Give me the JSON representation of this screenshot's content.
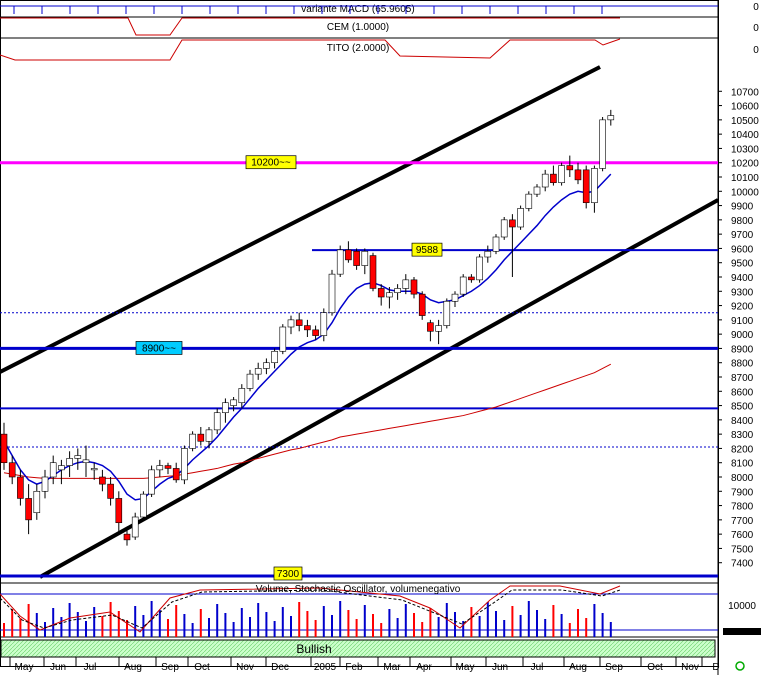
{
  "indicators": {
    "macd_label": "variante MACD (65.9605)",
    "cem_label": "CEM (1.0000)",
    "tito_label": "TITO (2.0000)",
    "macd_value": "0",
    "cem_value": "0",
    "tito_value": "0"
  },
  "levels": {
    "upper_label": "10200~~",
    "mid_label": "9588",
    "lower_label": "8900~~",
    "bottom_label": "7300"
  },
  "volume_pane": {
    "title": "Volume, Stochastic Oscillator, volumenegativo",
    "axis_value": "10000"
  },
  "status": {
    "signal": "Bullish"
  },
  "colors": {
    "up": "#ffffff",
    "down": "#ff0000",
    "ma_short": "#0000cc",
    "ma_long": "#cc0000",
    "level_blue": "#0000cc",
    "level_magenta": "#ff00ff",
    "channel": "#000000",
    "label_yellow": "#ffff00",
    "label_cyan": "#00ccff"
  },
  "chart_data": {
    "type": "candlestick",
    "title": "",
    "ylim": [
      7300,
      10800
    ],
    "y_ticks": [
      7400,
      7500,
      7600,
      7700,
      7800,
      7900,
      8000,
      8100,
      8200,
      8300,
      8400,
      8500,
      8600,
      8700,
      8800,
      8900,
      9000,
      9100,
      9200,
      9300,
      9400,
      9500,
      9600,
      9700,
      9800,
      9900,
      10000,
      10100,
      10200,
      10300,
      10400,
      10500,
      10600,
      10700
    ],
    "x_labels": [
      "May",
      "Jun",
      "Jul",
      "Aug",
      "Sep",
      "Oct",
      "Nov",
      "Dec",
      "2005",
      "Feb",
      "Mar",
      "Apr",
      "May",
      "Jun",
      "Jul",
      "Aug",
      "Sep",
      "Oct",
      "Nov",
      "D"
    ],
    "horizontal_levels": [
      10200,
      9588,
      8900,
      8480
    ],
    "dotted_levels": [
      9150,
      8210
    ],
    "candles": [
      {
        "o": 8300,
        "h": 8380,
        "l": 8050,
        "c": 8100
      },
      {
        "o": 8100,
        "h": 8150,
        "l": 7950,
        "c": 8000
      },
      {
        "o": 8000,
        "h": 8050,
        "l": 7800,
        "c": 7850
      },
      {
        "o": 7850,
        "h": 7950,
        "l": 7600,
        "c": 7700
      },
      {
        "o": 7750,
        "h": 7950,
        "l": 7700,
        "c": 7900
      },
      {
        "o": 7900,
        "h": 8050,
        "l": 7850,
        "c": 8000
      },
      {
        "o": 8000,
        "h": 8150,
        "l": 7950,
        "c": 8100
      },
      {
        "o": 8050,
        "h": 8120,
        "l": 7950,
        "c": 8080
      },
      {
        "o": 8080,
        "h": 8180,
        "l": 8000,
        "c": 8130
      },
      {
        "o": 8130,
        "h": 8200,
        "l": 8050,
        "c": 8150
      },
      {
        "o": 8100,
        "h": 8220,
        "l": 8000,
        "c": 8120
      },
      {
        "o": 8050,
        "h": 8100,
        "l": 7980,
        "c": 8060
      },
      {
        "o": 8000,
        "h": 8050,
        "l": 7900,
        "c": 7950
      },
      {
        "o": 7950,
        "h": 8000,
        "l": 7800,
        "c": 7850
      },
      {
        "o": 7850,
        "h": 7900,
        "l": 7600,
        "c": 7680
      },
      {
        "o": 7600,
        "h": 7650,
        "l": 7520,
        "c": 7560
      },
      {
        "o": 7580,
        "h": 7750,
        "l": 7560,
        "c": 7720
      },
      {
        "o": 7720,
        "h": 7900,
        "l": 7700,
        "c": 7880
      },
      {
        "o": 7880,
        "h": 8080,
        "l": 7860,
        "c": 8050
      },
      {
        "o": 8050,
        "h": 8120,
        "l": 8000,
        "c": 8080
      },
      {
        "o": 8080,
        "h": 8100,
        "l": 8020,
        "c": 8060
      },
      {
        "o": 8060,
        "h": 8100,
        "l": 7960,
        "c": 7980
      },
      {
        "o": 7980,
        "h": 8220,
        "l": 7950,
        "c": 8200
      },
      {
        "o": 8200,
        "h": 8320,
        "l": 8180,
        "c": 8300
      },
      {
        "o": 8300,
        "h": 8350,
        "l": 8220,
        "c": 8250
      },
      {
        "o": 8250,
        "h": 8350,
        "l": 8200,
        "c": 8330
      },
      {
        "o": 8330,
        "h": 8480,
        "l": 8300,
        "c": 8450
      },
      {
        "o": 8450,
        "h": 8550,
        "l": 8380,
        "c": 8520
      },
      {
        "o": 8500,
        "h": 8560,
        "l": 8460,
        "c": 8540
      },
      {
        "o": 8520,
        "h": 8650,
        "l": 8480,
        "c": 8620
      },
      {
        "o": 8620,
        "h": 8750,
        "l": 8600,
        "c": 8720
      },
      {
        "o": 8720,
        "h": 8800,
        "l": 8680,
        "c": 8760
      },
      {
        "o": 8760,
        "h": 8830,
        "l": 8720,
        "c": 8800
      },
      {
        "o": 8800,
        "h": 8900,
        "l": 8760,
        "c": 8880
      },
      {
        "o": 8880,
        "h": 9070,
        "l": 8860,
        "c": 9050
      },
      {
        "o": 9050,
        "h": 9130,
        "l": 9000,
        "c": 9100
      },
      {
        "o": 9100,
        "h": 9150,
        "l": 9020,
        "c": 9060
      },
      {
        "o": 9060,
        "h": 9100,
        "l": 8980,
        "c": 9030
      },
      {
        "o": 9030,
        "h": 9060,
        "l": 8960,
        "c": 8990
      },
      {
        "o": 8990,
        "h": 9180,
        "l": 8950,
        "c": 9150
      },
      {
        "o": 9150,
        "h": 9450,
        "l": 9130,
        "c": 9420
      },
      {
        "o": 9420,
        "h": 9620,
        "l": 9400,
        "c": 9590
      },
      {
        "o": 9590,
        "h": 9650,
        "l": 9500,
        "c": 9520
      },
      {
        "o": 9580,
        "h": 9600,
        "l": 9450,
        "c": 9480
      },
      {
        "o": 9480,
        "h": 9600,
        "l": 9420,
        "c": 9580
      },
      {
        "o": 9550,
        "h": 9570,
        "l": 9300,
        "c": 9320
      },
      {
        "o": 9320,
        "h": 9350,
        "l": 9200,
        "c": 9260
      },
      {
        "o": 9260,
        "h": 9330,
        "l": 9180,
        "c": 9290
      },
      {
        "o": 9290,
        "h": 9350,
        "l": 9240,
        "c": 9320
      },
      {
        "o": 9320,
        "h": 9420,
        "l": 9280,
        "c": 9380
      },
      {
        "o": 9380,
        "h": 9400,
        "l": 9250,
        "c": 9280
      },
      {
        "o": 9280,
        "h": 9300,
        "l": 9100,
        "c": 9130
      },
      {
        "o": 9080,
        "h": 9100,
        "l": 8950,
        "c": 9020
      },
      {
        "o": 9020,
        "h": 9100,
        "l": 8930,
        "c": 9060
      },
      {
        "o": 9060,
        "h": 9250,
        "l": 9040,
        "c": 9230
      },
      {
        "o": 9230,
        "h": 9300,
        "l": 9190,
        "c": 9280
      },
      {
        "o": 9280,
        "h": 9420,
        "l": 9260,
        "c": 9400
      },
      {
        "o": 9400,
        "h": 9420,
        "l": 9360,
        "c": 9380
      },
      {
        "o": 9380,
        "h": 9560,
        "l": 9360,
        "c": 9540
      },
      {
        "o": 9540,
        "h": 9620,
        "l": 9500,
        "c": 9580
      },
      {
        "o": 9580,
        "h": 9700,
        "l": 9560,
        "c": 9680
      },
      {
        "o": 9680,
        "h": 9820,
        "l": 9660,
        "c": 9800
      },
      {
        "o": 9800,
        "h": 9840,
        "l": 9400,
        "c": 9750
      },
      {
        "o": 9750,
        "h": 9900,
        "l": 9730,
        "c": 9880
      },
      {
        "o": 9880,
        "h": 10000,
        "l": 9860,
        "c": 9980
      },
      {
        "o": 9980,
        "h": 10050,
        "l": 9960,
        "c": 10030
      },
      {
        "o": 10030,
        "h": 10150,
        "l": 10000,
        "c": 10120
      },
      {
        "o": 10120,
        "h": 10180,
        "l": 10040,
        "c": 10060
      },
      {
        "o": 10060,
        "h": 10200,
        "l": 10040,
        "c": 10180
      },
      {
        "o": 10180,
        "h": 10250,
        "l": 10100,
        "c": 10150
      },
      {
        "o": 10150,
        "h": 10200,
        "l": 10050,
        "c": 10080
      },
      {
        "o": 10150,
        "h": 10180,
        "l": 9880,
        "c": 9920
      },
      {
        "o": 9920,
        "h": 10180,
        "l": 9850,
        "c": 10160
      },
      {
        "o": 10160,
        "h": 10520,
        "l": 10140,
        "c": 10500
      },
      {
        "o": 10500,
        "h": 10570,
        "l": 10460,
        "c": 10530
      }
    ],
    "ma_short": [
      8250,
      8150,
      8050,
      7980,
      7950,
      7970,
      8010,
      8050,
      8080,
      8100,
      8110,
      8100,
      8080,
      8040,
      7970,
      7880,
      7840,
      7850,
      7900,
      7950,
      7990,
      8010,
      8060,
      8120,
      8170,
      8220,
      8280,
      8350,
      8420,
      8480,
      8550,
      8620,
      8680,
      8740,
      8800,
      8860,
      8910,
      8940,
      8960,
      9000,
      9080,
      9180,
      9260,
      9320,
      9350,
      9360,
      9340,
      9310,
      9300,
      9300,
      9300,
      9280,
      9240,
      9220,
      9230,
      9240,
      9270,
      9300,
      9340,
      9390,
      9450,
      9520,
      9580,
      9640,
      9700,
      9760,
      9830,
      9890,
      9940,
      9980,
      10000,
      9990,
      10000,
      10060,
      10120
    ],
    "ma_long": [
      8030,
      8020,
      8010,
      8000,
      7995,
      7990,
      7990,
      7990,
      7990,
      7990,
      7990,
      7990,
      7990,
      7990,
      7990,
      7990,
      7990,
      7990,
      7995,
      8000,
      8005,
      8010,
      8020,
      8030,
      8040,
      8050,
      8060,
      8075,
      8090,
      8100,
      8115,
      8130,
      8145,
      8160,
      8175,
      8190,
      8200,
      8215,
      8230,
      8245,
      8260,
      8280,
      8290,
      8300,
      8310,
      8320,
      8330,
      8340,
      8350,
      8360,
      8370,
      8380,
      8390,
      8400,
      8410,
      8420,
      8430,
      8445,
      8460,
      8475,
      8490,
      8510,
      8530,
      8550,
      8570,
      8590,
      8610,
      8630,
      8650,
      8670,
      8690,
      8710,
      8730,
      8760,
      8790
    ]
  }
}
